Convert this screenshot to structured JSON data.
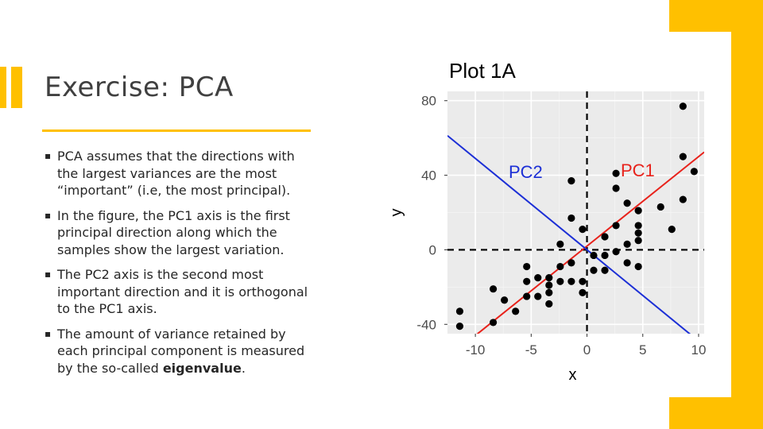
{
  "slide": {
    "title": "Exercise: PCA",
    "accent_color": "#FFC000",
    "bullets": [
      {
        "text": "PCA assumes that the directions with the largest variances are the most “important” (i.e, the most principal)."
      },
      {
        "text": "In the figure, the PC1 axis is the first principal direction along which the samples show the largest variation."
      },
      {
        "text": "The PC2 axis is the second most important direction and it is orthogonal to the PC1 axis."
      },
      {
        "text_before": "The amount of variance retained by each principal component is measured by the so-called ",
        "bold": "eigenvalue",
        "text_after": "."
      }
    ]
  },
  "chart_data": {
    "type": "scatter",
    "title": "Plot 1A",
    "xlabel": "x",
    "ylabel": "y",
    "xlim": [
      -12.5,
      10.5
    ],
    "ylim": [
      -45,
      85
    ],
    "xticks": [
      -10,
      -5,
      0,
      5,
      10
    ],
    "xtick_labels": [
      "-10",
      "-5",
      "0",
      "5",
      "10"
    ],
    "yticks": [
      -40,
      0,
      40,
      80
    ],
    "ytick_labels": [
      "-40",
      "0",
      "40",
      "80"
    ],
    "grid": true,
    "points": [
      {
        "x": 8.6,
        "y": 77
      },
      {
        "x": 8.6,
        "y": 50
      },
      {
        "x": 9.6,
        "y": 42
      },
      {
        "x": 8.6,
        "y": 27
      },
      {
        "x": 6.6,
        "y": 23
      },
      {
        "x": 7.6,
        "y": 11
      },
      {
        "x": 2.6,
        "y": 41
      },
      {
        "x": 2.6,
        "y": 33
      },
      {
        "x": 3.6,
        "y": 25
      },
      {
        "x": 4.6,
        "y": 21
      },
      {
        "x": 4.6,
        "y": 13
      },
      {
        "x": 4.6,
        "y": 9
      },
      {
        "x": 4.6,
        "y": 5
      },
      {
        "x": 3.6,
        "y": 3
      },
      {
        "x": 2.6,
        "y": 13
      },
      {
        "x": 1.6,
        "y": 7
      },
      {
        "x": 2.6,
        "y": -1
      },
      {
        "x": 3.6,
        "y": -7
      },
      {
        "x": 4.6,
        "y": -9
      },
      {
        "x": 1.6,
        "y": -3
      },
      {
        "x": 1.6,
        "y": -11
      },
      {
        "x": 0.6,
        "y": -11
      },
      {
        "x": 0.6,
        "y": -3
      },
      {
        "x": -1.4,
        "y": 37
      },
      {
        "x": -1.4,
        "y": 17
      },
      {
        "x": -2.4,
        "y": 3
      },
      {
        "x": -0.4,
        "y": 11
      },
      {
        "x": -0.4,
        "y": -17
      },
      {
        "x": -0.4,
        "y": -23
      },
      {
        "x": -1.4,
        "y": -7
      },
      {
        "x": -1.4,
        "y": -17
      },
      {
        "x": -2.4,
        "y": -9
      },
      {
        "x": -2.4,
        "y": -17
      },
      {
        "x": -3.4,
        "y": -15
      },
      {
        "x": -3.4,
        "y": -19
      },
      {
        "x": -3.4,
        "y": -23
      },
      {
        "x": -3.4,
        "y": -29
      },
      {
        "x": -4.4,
        "y": -15
      },
      {
        "x": -4.4,
        "y": -25
      },
      {
        "x": -5.4,
        "y": -9
      },
      {
        "x": -5.4,
        "y": -17
      },
      {
        "x": -5.4,
        "y": -25
      },
      {
        "x": -6.4,
        "y": -33
      },
      {
        "x": -7.4,
        "y": -27
      },
      {
        "x": -8.4,
        "y": -21
      },
      {
        "x": -8.4,
        "y": -39
      },
      {
        "x": -11.4,
        "y": -33
      },
      {
        "x": -11.4,
        "y": -41
      }
    ],
    "reference_lines": [
      {
        "orientation": "vertical",
        "value": 0,
        "style": "dashed",
        "color": "#000000"
      },
      {
        "orientation": "horizontal",
        "value": 0,
        "style": "dashed",
        "color": "#000000"
      }
    ],
    "pc_axes": [
      {
        "name": "PC1",
        "label": "PC1",
        "slope": 4.8,
        "intercept": 2,
        "color": "#E8221B"
      },
      {
        "name": "PC2",
        "label": "PC2",
        "slope": -4.9,
        "intercept": 0,
        "color": "#1C2FD6"
      }
    ]
  }
}
